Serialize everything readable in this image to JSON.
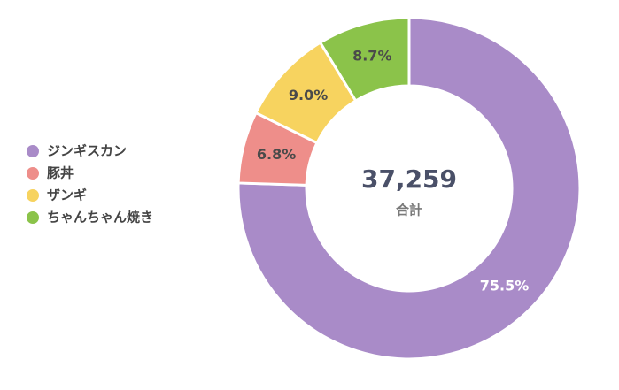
{
  "chart_data": {
    "type": "donut",
    "categories": [
      "ジンギスカン",
      "豚丼",
      "ザンギ",
      "ちゃんちゃん焼き"
    ],
    "values": [
      75.5,
      6.8,
      9.0,
      8.7
    ],
    "value_labels": [
      "75.5%",
      "6.8%",
      "9.0%",
      "8.7%"
    ],
    "colors": [
      "#a98bc8",
      "#ee8e8a",
      "#f7d35f",
      "#8bc34a"
    ],
    "label_colors": [
      "#ffffff",
      "#4a4a4a",
      "#4a4a4a",
      "#4a4a4a"
    ],
    "center_value": "37,259",
    "center_label": "合計",
    "legend": "left"
  }
}
